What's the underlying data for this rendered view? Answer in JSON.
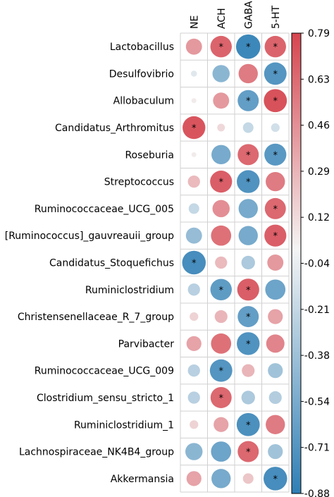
{
  "chart_data": {
    "type": "heatmap",
    "columns": [
      "NE",
      "ACH",
      "GABA",
      "5-HT"
    ],
    "rows": [
      "Lactobacillus",
      "Desulfovibrio",
      "Allobaculum",
      "Candidatus_Arthromitus",
      "Roseburia",
      "Streptococcus",
      "Ruminococcaceae_UCG_005",
      "[Ruminococcus]_gauvreauii_group",
      "Candidatus_Stoquefichus",
      "Ruminiclostridium",
      "Christensenellaceae_R_7_group",
      "Parvibacter",
      "Ruminococcaceae_UCG_009",
      "Clostridium_sensu_stricto_1",
      "Ruminiclostridium_1",
      "Lachnospiraceae_NK4B4_group",
      "Akkermansia"
    ],
    "values": [
      [
        0.35,
        0.62,
        -0.8,
        0.62
      ],
      [
        -0.05,
        -0.4,
        0.5,
        -0.68
      ],
      [
        0.02,
        0.35,
        -0.6,
        0.72
      ],
      [
        0.7,
        0.08,
        -0.15,
        -0.1
      ],
      [
        0.02,
        -0.5,
        0.6,
        -0.65
      ],
      [
        0.2,
        0.65,
        -0.7,
        0.5
      ],
      [
        -0.15,
        0.4,
        -0.5,
        0.6
      ],
      [
        -0.35,
        0.55,
        -0.5,
        0.65
      ],
      [
        -0.75,
        0.2,
        -0.25,
        0.35
      ],
      [
        -0.2,
        -0.62,
        0.65,
        -0.55
      ],
      [
        0.1,
        0.22,
        -0.6,
        0.3
      ],
      [
        0.3,
        0.55,
        -0.7,
        0.45
      ],
      [
        -0.2,
        -0.68,
        0.22,
        -0.3
      ],
      [
        -0.2,
        0.6,
        -0.25,
        -0.22
      ],
      [
        0.1,
        0.3,
        -0.72,
        0.5
      ],
      [
        -0.4,
        -0.55,
        0.6,
        -0.3
      ],
      [
        0.3,
        -0.5,
        0.15,
        -0.75
      ]
    ],
    "significant": [
      [
        false,
        true,
        true,
        true
      ],
      [
        false,
        false,
        false,
        true
      ],
      [
        false,
        false,
        true,
        true
      ],
      [
        true,
        false,
        false,
        false
      ],
      [
        false,
        false,
        true,
        true
      ],
      [
        false,
        true,
        true,
        false
      ],
      [
        false,
        false,
        false,
        true
      ],
      [
        false,
        false,
        false,
        true
      ],
      [
        true,
        false,
        false,
        false
      ],
      [
        false,
        true,
        true,
        false
      ],
      [
        false,
        false,
        true,
        false
      ],
      [
        false,
        false,
        true,
        false
      ],
      [
        false,
        true,
        false,
        false
      ],
      [
        false,
        true,
        false,
        false
      ],
      [
        false,
        false,
        true,
        false
      ],
      [
        false,
        false,
        true,
        false
      ],
      [
        false,
        false,
        false,
        true
      ]
    ],
    "significance_marker": "*",
    "colorbar": {
      "ticks": [
        "0.79",
        "0.63",
        "0.46",
        "0.29",
        "0.12",
        "-0.04",
        "-0.21",
        "-0.38",
        "-0.54",
        "-0.71",
        "-0.88"
      ],
      "min": -0.88,
      "max": 0.79,
      "positive_color": "#d6454f",
      "negative_color": "#2f7fb5",
      "zero_color": "#f4f4f4"
    },
    "title": "",
    "xlabel": "",
    "ylabel": ""
  }
}
